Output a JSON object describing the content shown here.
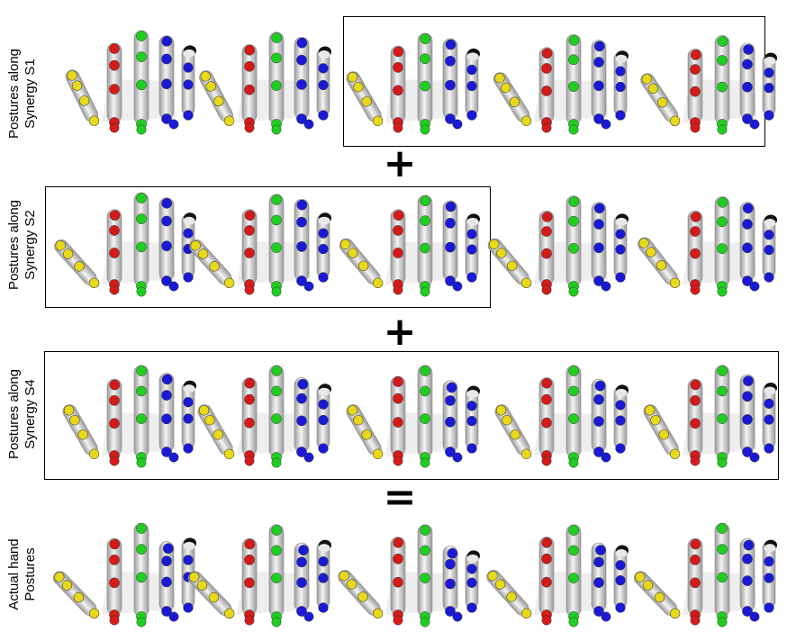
{
  "rows": [
    {
      "id": "s1",
      "label_lines": [
        "Postures along",
        "Synergy S1"
      ],
      "boxed_from": 2,
      "boxed_to": 4,
      "postures": [
        {
          "thumb": 0.15,
          "index": 0.0,
          "middle": 0.0,
          "ring": 0.05,
          "little": 0.1
        },
        {
          "thumb": 0.2,
          "index": 0.05,
          "middle": 0.05,
          "ring": 0.1,
          "little": 0.15
        },
        {
          "thumb": 0.25,
          "index": 0.1,
          "middle": 0.08,
          "ring": 0.15,
          "little": 0.25
        },
        {
          "thumb": 0.3,
          "index": 0.15,
          "middle": 0.12,
          "ring": 0.2,
          "little": 0.35
        },
        {
          "thumb": 0.35,
          "index": 0.2,
          "middle": 0.15,
          "ring": 0.3,
          "little": 0.45
        }
      ]
    },
    {
      "id": "s2",
      "label_lines": [
        "Postures along",
        "Synergy S2"
      ],
      "boxed_from": 0,
      "boxed_to": 2,
      "postures": [
        {
          "thumb": 0.55,
          "index": 0.15,
          "middle": 0.0,
          "ring": 0.05,
          "little": 0.35
        },
        {
          "thumb": 0.55,
          "index": 0.15,
          "middle": 0.05,
          "ring": 0.1,
          "little": 0.35
        },
        {
          "thumb": 0.5,
          "index": 0.15,
          "middle": 0.08,
          "ring": 0.15,
          "little": 0.4
        },
        {
          "thumb": 0.5,
          "index": 0.2,
          "middle": 0.1,
          "ring": 0.2,
          "little": 0.4
        },
        {
          "thumb": 0.45,
          "index": 0.2,
          "middle": 0.12,
          "ring": 0.2,
          "little": 0.45
        }
      ]
    },
    {
      "id": "s4",
      "label_lines": [
        "Postures along",
        "Synergy S4"
      ],
      "boxed_from": 0,
      "boxed_to": 4,
      "postures": [
        {
          "thumb": 0.25,
          "index": 0.1,
          "middle": 0.05,
          "ring": 0.2,
          "little": 0.2
        },
        {
          "thumb": 0.25,
          "index": 0.05,
          "middle": 0.05,
          "ring": 0.35,
          "little": 0.35
        },
        {
          "thumb": 0.25,
          "index": 0.0,
          "middle": 0.05,
          "ring": 0.45,
          "little": 0.45
        },
        {
          "thumb": 0.25,
          "index": 0.05,
          "middle": 0.05,
          "ring": 0.4,
          "little": 0.4
        },
        {
          "thumb": 0.25,
          "index": 0.1,
          "middle": 0.05,
          "ring": 0.25,
          "little": 0.3
        }
      ]
    },
    {
      "id": "actual",
      "label_lines": [
        "Actual hand",
        "Postures"
      ],
      "boxed_from": null,
      "boxed_to": null,
      "postures": [
        {
          "thumb": 0.6,
          "index": 0.1,
          "middle": 0.0,
          "ring": 0.5,
          "little": 0.1
        },
        {
          "thumb": 0.6,
          "index": 0.1,
          "middle": 0.05,
          "ring": 0.55,
          "little": 0.2
        },
        {
          "thumb": 0.55,
          "index": 0.05,
          "middle": 0.05,
          "ring": 0.65,
          "little": 0.7
        },
        {
          "thumb": 0.55,
          "index": 0.05,
          "middle": 0.05,
          "ring": 0.55,
          "little": 0.45
        },
        {
          "thumb": 0.6,
          "index": 0.1,
          "middle": 0.0,
          "ring": 0.4,
          "little": 0.2
        }
      ]
    }
  ],
  "operators": [
    "+",
    "+",
    "="
  ],
  "colors": {
    "index": "#d51a1a",
    "middle": "#1fcf1f",
    "ring": "#1a1ad5",
    "little": "#e8d81a",
    "thumb_tip": "#111111",
    "bone_light": "#f4f4f4",
    "bone_dark": "#9a9a9a",
    "palm": "#e0e0e0",
    "frame": "#000000"
  }
}
